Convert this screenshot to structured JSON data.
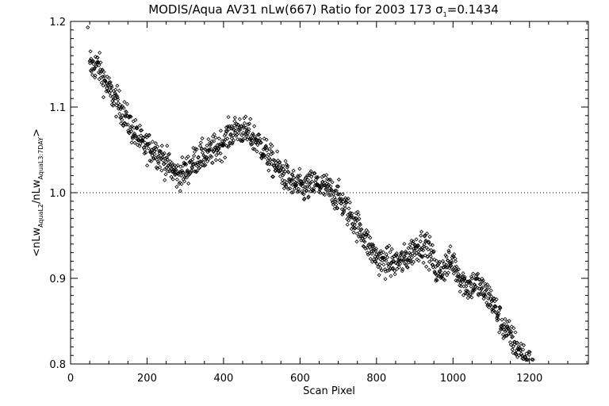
{
  "chart_data": {
    "type": "scatter",
    "title": "MODIS/Aqua AV31 nLw(667) Ratio for 2003 173 σ",
    "title_sub": "1",
    "title_value": "=0.1434",
    "xlabel": "Scan Pixel",
    "ylabel_parts": {
      "open": "<nLw",
      "sub1": "AquaL2",
      "mid": "/nLw",
      "sub2": "AquaL3:7DAY",
      "close": ">"
    },
    "xlim": [
      0,
      1354
    ],
    "ylim": [
      0.8,
      1.2
    ],
    "x_ticks": [
      0,
      200,
      400,
      600,
      800,
      1000,
      1200
    ],
    "x_tick_labels": [
      "0",
      "200",
      "400",
      "600",
      "800",
      "1000",
      "1200"
    ],
    "y_ticks": [
      0.8,
      0.9,
      1.0,
      1.1,
      1.2
    ],
    "y_tick_labels": [
      "0.8",
      "0.9",
      "1.0",
      "1.1",
      "1.2"
    ],
    "reference_line": 1.0,
    "marker": "diamond",
    "grid": false,
    "trend": {
      "x": [
        50,
        70,
        100,
        130,
        160,
        190,
        220,
        250,
        280,
        300,
        330,
        360,
        390,
        420,
        440,
        460,
        490,
        520,
        550,
        580,
        610,
        640,
        670,
        700,
        730,
        760,
        790,
        810,
        840,
        870,
        900,
        920,
        940,
        960,
        980,
        1000,
        1020,
        1040,
        1060,
        1080,
        1100,
        1130,
        1160,
        1190,
        1210
      ],
      "y": [
        1.145,
        1.15,
        1.12,
        1.1,
        1.075,
        1.055,
        1.05,
        1.035,
        1.02,
        1.025,
        1.04,
        1.045,
        1.055,
        1.07,
        1.075,
        1.07,
        1.06,
        1.04,
        1.025,
        1.01,
        1.005,
        1.01,
        1.005,
        0.995,
        0.975,
        0.955,
        0.93,
        0.92,
        0.918,
        0.92,
        0.935,
        0.94,
        0.93,
        0.905,
        0.915,
        0.92,
        0.9,
        0.89,
        0.895,
        0.885,
        0.875,
        0.845,
        0.825,
        0.805,
        0.795
      ]
    },
    "outliers": [
      {
        "x": 45,
        "y": 1.193
      },
      {
        "x": 52,
        "y": 1.165
      }
    ]
  }
}
